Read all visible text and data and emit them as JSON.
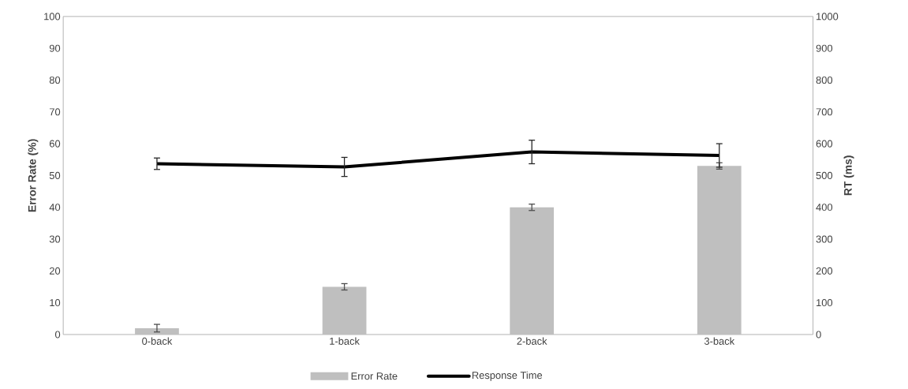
{
  "chart_data": {
    "type": "bar",
    "categories": [
      "0-back",
      "1-back",
      "2-back",
      "3-back"
    ],
    "series": [
      {
        "name": "Error Rate",
        "color": "#bfbfbf",
        "values": [
          2,
          15,
          40,
          53
        ],
        "errors": [
          1.2,
          1,
          1,
          1
        ]
      },
      {
        "name": "Response Time",
        "type": "line",
        "axis": "y2",
        "color": "#000000",
        "values": [
          537,
          527,
          574,
          563
        ],
        "errors": [
          18,
          30,
          37,
          37
        ]
      }
    ],
    "ylabel": "Error Rate (%)",
    "y2label": "RT (ms)",
    "ylim": [
      0,
      100
    ],
    "yticks": [
      0,
      10,
      20,
      30,
      40,
      50,
      60,
      70,
      80,
      90,
      100
    ],
    "y2lim": [
      0,
      1000
    ],
    "y2ticks": [
      0,
      100,
      200,
      300,
      400,
      500,
      600,
      700,
      800,
      900,
      1000
    ],
    "grid": false,
    "legend": "bottom",
    "marker": "none",
    "line_style": "solid"
  }
}
